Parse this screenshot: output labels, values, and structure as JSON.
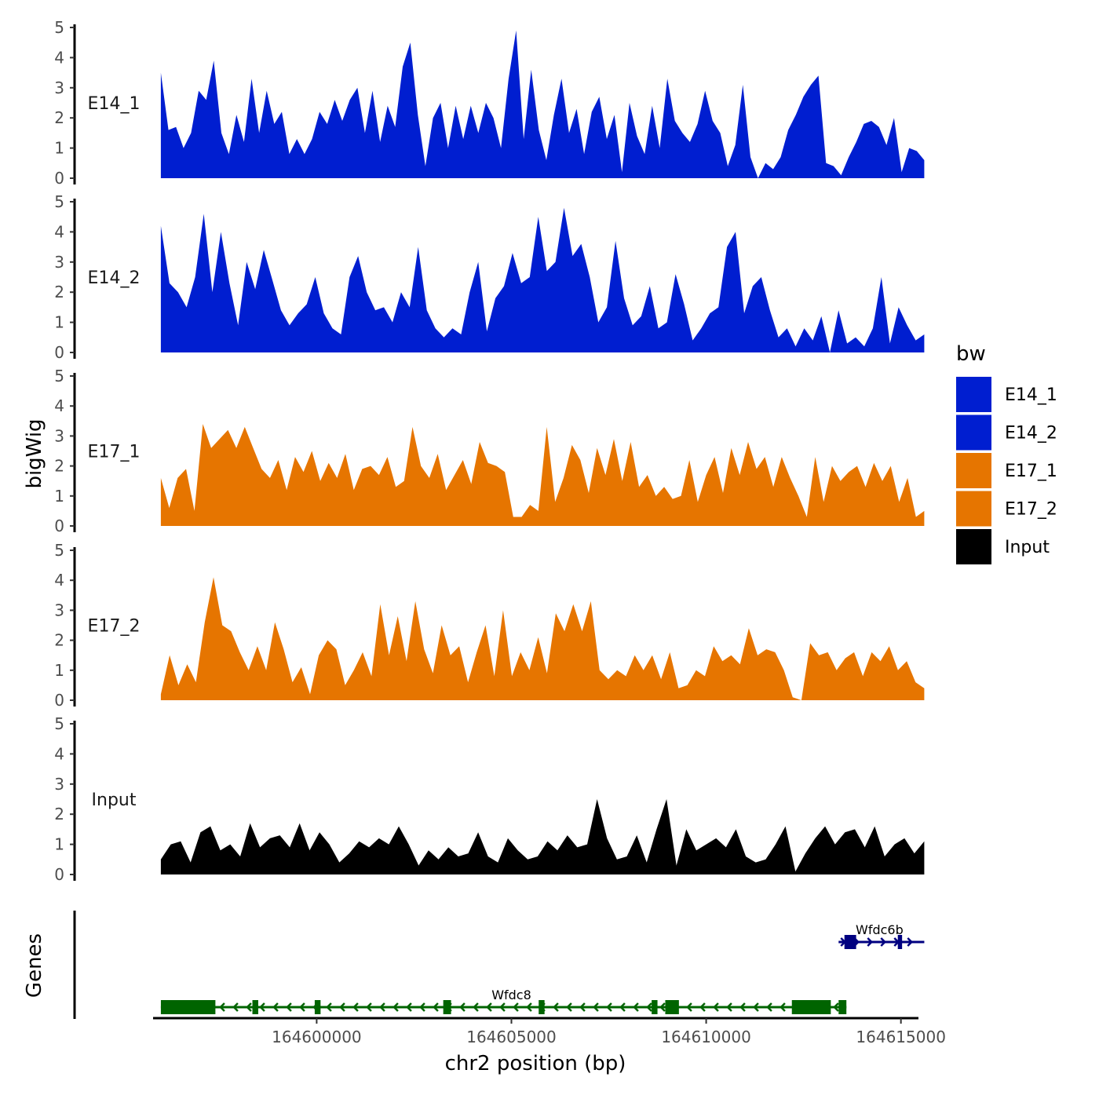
{
  "chart_data": {
    "type": "area",
    "chromosome": "chr2",
    "xlabel": "chr2 position (bp)",
    "ylabel": "bigWig",
    "genes_label": "Genes",
    "xlim": [
      164595800,
      164615450
    ],
    "ylim": [
      0,
      5
    ],
    "yticks": [
      0,
      1,
      2,
      3,
      4,
      5
    ],
    "xticks": [
      164600000,
      164605000,
      164610000,
      164615000
    ],
    "xtick_labels": [
      "164600000",
      "164605000",
      "164610000",
      "164615000"
    ],
    "data_start": 164596000,
    "data_end": 164615600,
    "legend": {
      "title": "bw",
      "entries": [
        {
          "name": "E14_1",
          "color": "#001ed0"
        },
        {
          "name": "E14_2",
          "color": "#001ed0"
        },
        {
          "name": "E17_1",
          "color": "#e67500"
        },
        {
          "name": "E17_2",
          "color": "#e67500"
        },
        {
          "name": "Input",
          "color": "#000000"
        }
      ]
    },
    "series": [
      {
        "name": "E14_1",
        "color": "#001ed0",
        "values": [
          3.5,
          1.6,
          1.7,
          1.0,
          1.5,
          2.9,
          2.6,
          3.9,
          1.5,
          0.8,
          2.1,
          1.2,
          3.3,
          1.5,
          2.9,
          1.8,
          2.2,
          0.8,
          1.3,
          0.8,
          1.3,
          2.2,
          1.8,
          2.6,
          1.9,
          2.6,
          3.0,
          1.5,
          2.9,
          1.2,
          2.4,
          1.7,
          3.7,
          4.5,
          2.1,
          0.4,
          2.0,
          2.5,
          1.0,
          2.4,
          1.3,
          2.4,
          1.5,
          2.5,
          2.0,
          1.0,
          3.3,
          4.9,
          1.3,
          3.6,
          1.6,
          0.6,
          2.1,
          3.3,
          1.5,
          2.3,
          0.8,
          2.2,
          2.7,
          1.3,
          2.1,
          0.2,
          2.5,
          1.4,
          0.8,
          2.4,
          1.0,
          3.3,
          1.9,
          1.5,
          1.2,
          1.8,
          2.9,
          1.9,
          1.5,
          0.4,
          1.1,
          3.1,
          0.7,
          0.0,
          0.5,
          0.3,
          0.7,
          1.6,
          2.1,
          2.7,
          3.1,
          3.4,
          0.5,
          0.4,
          0.1,
          0.7,
          1.2,
          1.8,
          1.9,
          1.7,
          1.1,
          2.0,
          0.2,
          1.0,
          0.9,
          0.6
        ]
      },
      {
        "name": "E14_2",
        "color": "#001ed0",
        "values": [
          4.2,
          2.3,
          2.0,
          1.5,
          2.5,
          4.6,
          2.0,
          4.0,
          2.3,
          0.9,
          3.0,
          2.1,
          3.4,
          2.4,
          1.4,
          0.9,
          1.3,
          1.6,
          2.5,
          1.3,
          0.8,
          0.6,
          2.5,
          3.2,
          2.0,
          1.4,
          1.5,
          1.0,
          2.0,
          1.5,
          3.5,
          1.4,
          0.8,
          0.5,
          0.8,
          0.6,
          2.0,
          3.0,
          0.7,
          1.8,
          2.2,
          3.3,
          2.3,
          2.5,
          4.5,
          2.7,
          3.0,
          4.8,
          3.2,
          3.6,
          2.5,
          1.0,
          1.5,
          3.7,
          1.8,
          0.9,
          1.2,
          2.2,
          0.8,
          1.0,
          2.6,
          1.6,
          0.4,
          0.8,
          1.3,
          1.5,
          3.5,
          4.0,
          1.3,
          2.2,
          2.5,
          1.4,
          0.5,
          0.8,
          0.2,
          0.8,
          0.4,
          1.2,
          0.0,
          1.4,
          0.3,
          0.5,
          0.2,
          0.8,
          2.5,
          0.3,
          1.5,
          0.9,
          0.4,
          0.6
        ]
      },
      {
        "name": "E17_1",
        "color": "#e67500",
        "values": [
          1.6,
          0.6,
          1.6,
          1.9,
          0.5,
          3.4,
          2.6,
          2.9,
          3.2,
          2.6,
          3.3,
          2.6,
          1.9,
          1.6,
          2.2,
          1.2,
          2.3,
          1.8,
          2.5,
          1.5,
          2.1,
          1.6,
          2.4,
          1.2,
          1.9,
          2.0,
          1.7,
          2.3,
          1.3,
          1.5,
          3.3,
          2.0,
          1.6,
          2.4,
          1.2,
          1.7,
          2.2,
          1.4,
          2.8,
          2.1,
          2.0,
          1.8,
          0.3,
          0.3,
          0.7,
          0.5,
          3.3,
          0.8,
          1.6,
          2.7,
          2.2,
          1.1,
          2.6,
          1.7,
          2.9,
          1.5,
          2.8,
          1.3,
          1.7,
          1.0,
          1.3,
          0.9,
          1.0,
          2.2,
          0.8,
          1.7,
          2.3,
          1.1,
          2.6,
          1.7,
          2.8,
          1.9,
          2.3,
          1.3,
          2.3,
          1.6,
          1.0,
          0.3,
          2.3,
          0.8,
          2.0,
          1.5,
          1.8,
          2.0,
          1.3,
          2.1,
          1.5,
          2.0,
          0.8,
          1.6,
          0.3,
          0.5
        ]
      },
      {
        "name": "E17_2",
        "color": "#e67500",
        "values": [
          0.2,
          1.5,
          0.5,
          1.2,
          0.6,
          2.6,
          4.1,
          2.5,
          2.3,
          1.6,
          1.0,
          1.8,
          1.0,
          2.6,
          1.7,
          0.6,
          1.1,
          0.2,
          1.5,
          2.0,
          1.7,
          0.5,
          1.0,
          1.6,
          0.8,
          3.2,
          1.5,
          2.8,
          1.3,
          3.3,
          1.7,
          0.9,
          2.5,
          1.5,
          1.8,
          0.6,
          1.6,
          2.5,
          0.8,
          3.0,
          0.8,
          1.6,
          1.0,
          2.1,
          0.9,
          2.9,
          2.3,
          3.2,
          2.3,
          3.3,
          1.0,
          0.7,
          1.0,
          0.8,
          1.5,
          1.0,
          1.5,
          0.7,
          1.6,
          0.4,
          0.5,
          1.0,
          0.8,
          1.8,
          1.3,
          1.5,
          1.2,
          2.4,
          1.5,
          1.7,
          1.6,
          1.0,
          0.1,
          0.0,
          1.9,
          1.5,
          1.6,
          1.0,
          1.4,
          1.6,
          0.8,
          1.6,
          1.3,
          1.8,
          1.0,
          1.3,
          0.6,
          0.4
        ]
      },
      {
        "name": "Input",
        "color": "#000000",
        "values": [
          0.5,
          1.0,
          1.1,
          0.4,
          1.4,
          1.6,
          0.8,
          1.0,
          0.6,
          1.7,
          0.9,
          1.2,
          1.3,
          0.9,
          1.7,
          0.8,
          1.4,
          1.0,
          0.4,
          0.7,
          1.1,
          0.9,
          1.2,
          1.0,
          1.6,
          1.0,
          0.3,
          0.8,
          0.5,
          0.9,
          0.6,
          0.7,
          1.4,
          0.6,
          0.4,
          1.2,
          0.8,
          0.5,
          0.6,
          1.1,
          0.8,
          1.3,
          0.9,
          1.0,
          2.5,
          1.2,
          0.5,
          0.6,
          1.3,
          0.4,
          1.5,
          2.5,
          0.3,
          1.5,
          0.8,
          1.0,
          1.2,
          0.9,
          1.5,
          0.6,
          0.4,
          0.5,
          1.0,
          1.6,
          0.1,
          0.7,
          1.2,
          1.6,
          1.0,
          1.4,
          1.5,
          0.9,
          1.6,
          0.6,
          1.0,
          1.2,
          0.7,
          1.1
        ]
      }
    ],
    "genes": [
      {
        "name": "Wfdc8",
        "color": "#006400",
        "strand": "-",
        "start": 164596000,
        "end": 164613600,
        "exons": [
          [
            164596000,
            164597400
          ],
          [
            164598350,
            164598500
          ],
          [
            164599950,
            164600100
          ],
          [
            164603250,
            164603450
          ],
          [
            164605700,
            164605850
          ],
          [
            164608600,
            164608750
          ],
          [
            164608950,
            164609300
          ],
          [
            164612200,
            164613200
          ],
          [
            164613400,
            164613600
          ]
        ]
      },
      {
        "name": "Wfdc6b",
        "color": "#000080",
        "strand": "+",
        "start": 164613400,
        "end": 164615600,
        "exons": [
          [
            164613550,
            164613850
          ],
          [
            164614920,
            164615030
          ]
        ]
      }
    ]
  }
}
